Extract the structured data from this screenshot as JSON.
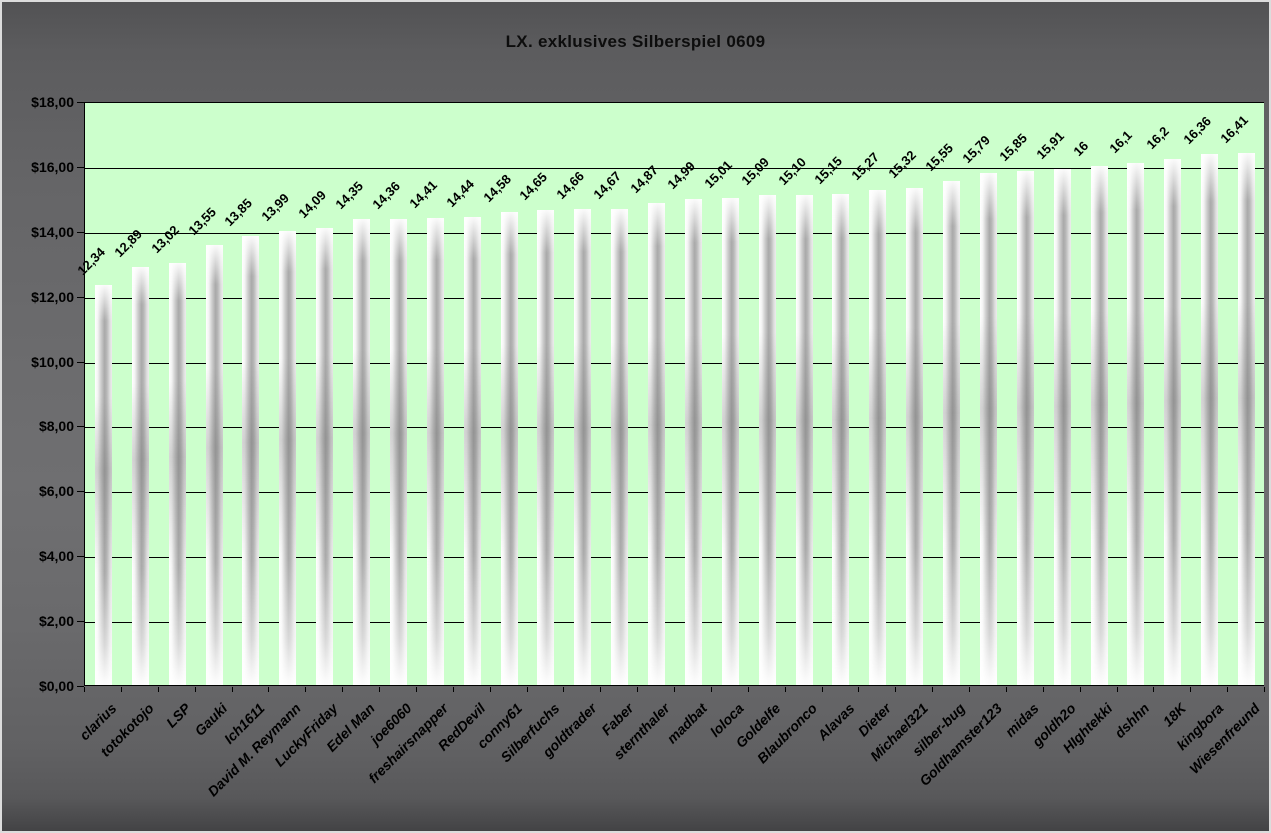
{
  "title": "LX. exklusives Silberspiel 0609",
  "colors": {
    "plot_bg": "#ccffcc",
    "gridline": "#000000",
    "text": "#000000",
    "backdrop_gray": "#6c6c6e",
    "bar_silver_dark": "#a9a9a9",
    "bar_silver_light": "#ffffff"
  },
  "chart_data": {
    "type": "bar",
    "title": "LX. exklusives Silberspiel 0609",
    "categories": [
      "clarius",
      "totokotojo",
      "LSP",
      "Gauki",
      "Ich1611",
      "David M. Reymann",
      "LuckyFriday",
      "Edel Man",
      "joe6060",
      "freshairsnapper",
      "RedDevil",
      "conny61",
      "Silberfuchs",
      "goldtrader",
      "Faber",
      "sternthaler",
      "madbat",
      "loloca",
      "Goldelfe",
      "Blaubronco",
      "Alavas",
      "Dieter",
      "Michael321",
      "silber-bug",
      "Goldhamster123",
      "midas",
      "goldh2o",
      "HIghtekki",
      "dshhn",
      "18K",
      "kingbora",
      "Wiesenfreund"
    ],
    "values": [
      12.34,
      12.89,
      13.02,
      13.55,
      13.85,
      13.99,
      14.09,
      14.35,
      14.36,
      14.41,
      14.44,
      14.58,
      14.65,
      14.66,
      14.67,
      14.87,
      14.99,
      15.01,
      15.09,
      15.1,
      15.15,
      15.27,
      15.32,
      15.55,
      15.79,
      15.85,
      15.91,
      16,
      16.1,
      16.2,
      16.36,
      16.41
    ],
    "value_labels": [
      "12,34",
      "12,89",
      "13,02",
      "13,55",
      "13,85",
      "13,99",
      "14,09",
      "14,35",
      "14,36",
      "14,41",
      "14,44",
      "14,58",
      "14,65",
      "14,66",
      "14,67",
      "14,87",
      "14,99",
      "15,01",
      "15,09",
      "15,10",
      "15,15",
      "15,27",
      "15,32",
      "15,55",
      "15,79",
      "15,85",
      "15,91",
      "16",
      "16,1",
      "16,2",
      "16,36",
      "16,41"
    ],
    "xlabel": "",
    "ylabel": "",
    "ylim": [
      0,
      18
    ],
    "ytick_step": 2,
    "ytick_labels": [
      "$18,00",
      "$16,00",
      "$14,00",
      "$12,00",
      "$10,00",
      "$8,00",
      "$6,00",
      "$4,00",
      "$2,00",
      "$0,00"
    ],
    "grid": true,
    "legend": "none",
    "value_label_rotation_deg": -45,
    "category_label_rotation_deg": -45,
    "plot_bg": "#ccffcc"
  }
}
